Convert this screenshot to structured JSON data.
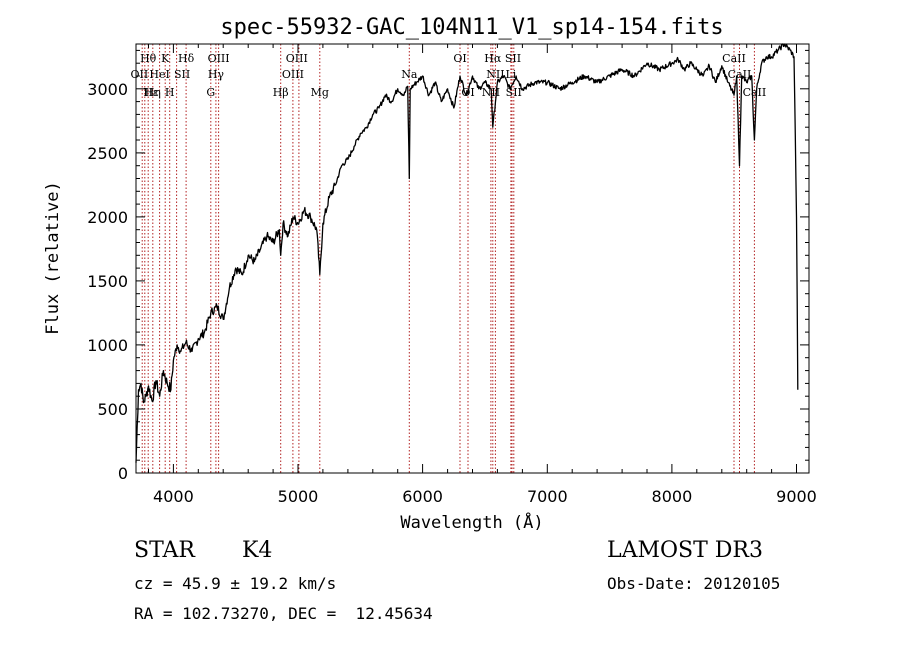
{
  "chart_data": {
    "type": "line",
    "title": "spec-55932-GAC_104N11_V1_sp14-154.fits",
    "xlabel": "Wavelength (Å)",
    "ylabel": "Flux (relative)",
    "xlim": [
      3700,
      9100
    ],
    "ylim": [
      0,
      3350
    ],
    "x_ticks": [
      4000,
      5000,
      6000,
      7000,
      8000,
      9000
    ],
    "y_ticks": [
      0,
      500,
      1000,
      1500,
      2000,
      2500,
      3000
    ],
    "x_tick_labels": [
      "4000",
      "5000",
      "6000",
      "7000",
      "8000",
      "9000"
    ],
    "y_tick_labels": [
      "0",
      "500",
      "1000",
      "1500",
      "2000",
      "2500",
      "3000"
    ],
    "line_color": "#000000",
    "marker_color": "#b22222",
    "series": [
      {
        "name": "flux",
        "x": [
          3700,
          3720,
          3740,
          3760,
          3780,
          3800,
          3830,
          3860,
          3890,
          3920,
          3950,
          3980,
          4000,
          4030,
          4060,
          4100,
          4150,
          4200,
          4250,
          4300,
          4350,
          4400,
          4450,
          4500,
          4550,
          4600,
          4650,
          4700,
          4750,
          4800,
          4850,
          4861,
          4880,
          4920,
          4960,
          5000,
          5050,
          5100,
          5150,
          5175,
          5200,
          5250,
          5300,
          5350,
          5400,
          5450,
          5500,
          5550,
          5600,
          5650,
          5700,
          5750,
          5800,
          5850,
          5880,
          5893,
          5900,
          5950,
          6000,
          6050,
          6100,
          6150,
          6200,
          6250,
          6300,
          6350,
          6400,
          6450,
          6500,
          6550,
          6563,
          6600,
          6650,
          6700,
          6750,
          6800,
          6900,
          7000,
          7100,
          7200,
          7300,
          7400,
          7500,
          7600,
          7700,
          7800,
          7900,
          8000,
          8050,
          8100,
          8150,
          8200,
          8250,
          8300,
          8350,
          8400,
          8450,
          8498,
          8520,
          8542,
          8560,
          8600,
          8640,
          8662,
          8680,
          8720,
          8760,
          8800,
          8850,
          8900,
          8950,
          8980,
          9000,
          9010
        ],
        "y": [
          80,
          650,
          700,
          550,
          600,
          680,
          560,
          720,
          600,
          800,
          700,
          650,
          880,
          1000,
          950,
          1020,
          950,
          1050,
          1100,
          1250,
          1300,
          1200,
          1450,
          1600,
          1550,
          1700,
          1650,
          1750,
          1850,
          1800,
          1900,
          1700,
          1950,
          1850,
          2000,
          1950,
          2050,
          2000,
          1900,
          1550,
          1950,
          2150,
          2250,
          2400,
          2450,
          2550,
          2650,
          2700,
          2800,
          2850,
          2950,
          2900,
          3000,
          2950,
          3020,
          2300,
          3000,
          3050,
          3100,
          2950,
          3050,
          2900,
          3000,
          2850,
          3100,
          2950,
          3100,
          3000,
          3050,
          3000,
          2700,
          3050,
          3100,
          3000,
          3100,
          3000,
          3050,
          3050,
          3000,
          3050,
          3100,
          3050,
          3100,
          3150,
          3100,
          3200,
          3150,
          3200,
          3230,
          3150,
          3200,
          3150,
          3100,
          3180,
          3050,
          3180,
          3050,
          2950,
          3100,
          2400,
          3100,
          3050,
          3100,
          2600,
          3000,
          3200,
          3250,
          3250,
          3300,
          3350,
          3300,
          3250,
          2000,
          650
        ]
      }
    ],
    "line_markers": [
      {
        "x": 3750
      },
      {
        "x": 3771
      },
      {
        "x": 3798
      },
      {
        "x": 3835
      },
      {
        "x": 3889
      },
      {
        "x": 3934
      },
      {
        "x": 3970
      },
      {
        "x": 4026
      },
      {
        "x": 4102
      },
      {
        "x": 4300
      },
      {
        "x": 4341
      },
      {
        "x": 4363
      },
      {
        "x": 4861
      },
      {
        "x": 4959
      },
      {
        "x": 5007
      },
      {
        "x": 5175
      },
      {
        "x": 5893
      },
      {
        "x": 6300
      },
      {
        "x": 6364
      },
      {
        "x": 6548
      },
      {
        "x": 6563
      },
      {
        "x": 6584
      },
      {
        "x": 6708
      },
      {
        "x": 6717
      },
      {
        "x": 6731
      },
      {
        "x": 8498
      },
      {
        "x": 8542
      },
      {
        "x": 8662
      }
    ],
    "line_labels": [
      {
        "text": "Hθ",
        "x": 3798,
        "row": 1
      },
      {
        "text": "K",
        "x": 3934,
        "row": 1
      },
      {
        "text": "Hδ",
        "x": 4102,
        "row": 1
      },
      {
        "text": "OIII",
        "x": 4363,
        "row": 1
      },
      {
        "text": "OIII",
        "x": 4990,
        "row": 1
      },
      {
        "text": "OI",
        "x": 6300,
        "row": 1
      },
      {
        "text": "Hα",
        "x": 6563,
        "row": 1
      },
      {
        "text": "SII",
        "x": 6725,
        "row": 1
      },
      {
        "text": "CaII",
        "x": 8498,
        "row": 1
      },
      {
        "text": "OII",
        "x": 3727,
        "row": 2
      },
      {
        "text": "HeI",
        "x": 3889,
        "row": 2
      },
      {
        "text": "SII",
        "x": 4070,
        "row": 2
      },
      {
        "text": "Hγ",
        "x": 4341,
        "row": 2
      },
      {
        "text": "OIII",
        "x": 4959,
        "row": 2
      },
      {
        "text": "Na",
        "x": 5893,
        "row": 2
      },
      {
        "text": "NII",
        "x": 6584,
        "row": 2
      },
      {
        "text": "Li",
        "x": 6708,
        "row": 2
      },
      {
        "text": "CaII",
        "x": 8542,
        "row": 2
      },
      {
        "text": "Hε",
        "x": 3820,
        "row": 3
      },
      {
        "text": "Hη",
        "x": 3835,
        "row": 3
      },
      {
        "text": "H",
        "x": 3970,
        "row": 3
      },
      {
        "text": "G",
        "x": 4300,
        "row": 3
      },
      {
        "text": "Hβ",
        "x": 4861,
        "row": 3
      },
      {
        "text": "Mg",
        "x": 5175,
        "row": 3
      },
      {
        "text": "OI",
        "x": 6364,
        "row": 3
      },
      {
        "text": "NII",
        "x": 6548,
        "row": 3
      },
      {
        "text": "SII",
        "x": 6731,
        "row": 3
      },
      {
        "text": "CaII",
        "x": 8662,
        "row": 3
      }
    ]
  },
  "info": {
    "object_class": "STAR",
    "subclass": "K4",
    "survey": "LAMOST DR3",
    "redshift_line": "cz = 45.9 ± 19.2 km/s",
    "obs_date": "Obs-Date: 20120105",
    "coords_line": "RA = 102.73270, DEC =  12.45634"
  }
}
